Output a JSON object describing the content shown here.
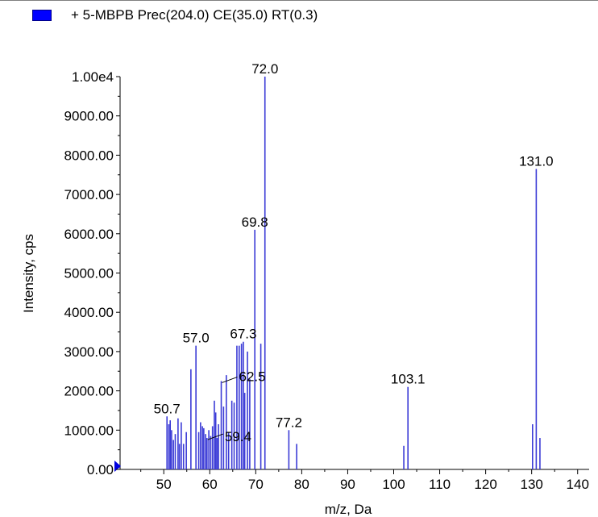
{
  "legend": {
    "label": "+ 5-MBPB Prec(204.0) CE(35.0) RT(0.3)",
    "color": "#0000ff"
  },
  "chart_data": {
    "type": "bar",
    "title": "",
    "xlabel": "m/z, Da",
    "ylabel": "Intensity, cps",
    "xlim": [
      40.5,
      142.5
    ],
    "ylim": [
      0,
      10000
    ],
    "x_ticks": [
      "50",
      "60",
      "70",
      "80",
      "90",
      "100",
      "110",
      "120",
      "130",
      "140"
    ],
    "x_tick_values": [
      50,
      60,
      70,
      80,
      90,
      100,
      110,
      120,
      130,
      140
    ],
    "y_ticks": [
      "0.00",
      "1000.00",
      "2000.00",
      "3000.00",
      "4000.00",
      "5000.00",
      "6000.00",
      "7000.00",
      "8000.00",
      "9000.00",
      "1.00e4"
    ],
    "y_tick_values": [
      0,
      1000,
      2000,
      3000,
      4000,
      5000,
      6000,
      7000,
      8000,
      9000,
      10000
    ],
    "grid": false,
    "bar_color": "#3b3bd6",
    "series": [
      {
        "values": [
          [
            50.7,
            1350
          ],
          [
            51.1,
            1150
          ],
          [
            51.4,
            1250
          ],
          [
            51.7,
            1000
          ],
          [
            52.1,
            750
          ],
          [
            52.5,
            900
          ],
          [
            53.1,
            1300
          ],
          [
            53.4,
            650
          ],
          [
            53.8,
            1200
          ],
          [
            54.3,
            650
          ],
          [
            54.9,
            950
          ],
          [
            55.9,
            2550
          ],
          [
            57.0,
            3150
          ],
          [
            57.6,
            950
          ],
          [
            58.0,
            1200
          ],
          [
            58.4,
            1100
          ],
          [
            58.7,
            1050
          ],
          [
            59.1,
            900
          ],
          [
            59.4,
            800
          ],
          [
            59.8,
            1000
          ],
          [
            60.2,
            850
          ],
          [
            60.6,
            1100
          ],
          [
            61.0,
            1750
          ],
          [
            61.3,
            1450
          ],
          [
            61.6,
            800
          ],
          [
            61.9,
            1150
          ],
          [
            62.5,
            2250
          ],
          [
            63.0,
            1600
          ],
          [
            63.6,
            2400
          ],
          [
            64.1,
            950
          ],
          [
            64.8,
            1750
          ],
          [
            65.3,
            1700
          ],
          [
            65.9,
            3150
          ],
          [
            66.4,
            3150
          ],
          [
            66.9,
            3200
          ],
          [
            67.3,
            3250
          ],
          [
            67.6,
            1950
          ],
          [
            68.2,
            3000
          ],
          [
            68.7,
            2300
          ],
          [
            69.8,
            6100
          ],
          [
            71.1,
            3200
          ],
          [
            72.0,
            10000
          ],
          [
            77.2,
            1000
          ],
          [
            78.9,
            650
          ],
          [
            102.2,
            600
          ],
          [
            103.1,
            2100
          ],
          [
            130.2,
            1150
          ],
          [
            131.0,
            7650
          ],
          [
            131.8,
            800
          ]
        ]
      }
    ],
    "annotations": [
      {
        "x": 72.0,
        "y": 10000,
        "label": "72.0"
      },
      {
        "x": 131.0,
        "y": 7650,
        "label": "131.0"
      },
      {
        "x": 69.8,
        "y": 6100,
        "label": "69.8"
      },
      {
        "x": 57.0,
        "y": 3150,
        "label": "57.0"
      },
      {
        "x": 67.3,
        "y": 3250,
        "label": "67.3"
      },
      {
        "x": 62.5,
        "y": 2250,
        "label": "62.5"
      },
      {
        "x": 103.1,
        "y": 2100,
        "label": "103.1"
      },
      {
        "x": 50.7,
        "y": 1350,
        "label": "50.7"
      },
      {
        "x": 59.4,
        "y": 800,
        "label": "59.4"
      },
      {
        "x": 77.2,
        "y": 1000,
        "label": "77.2"
      }
    ]
  }
}
